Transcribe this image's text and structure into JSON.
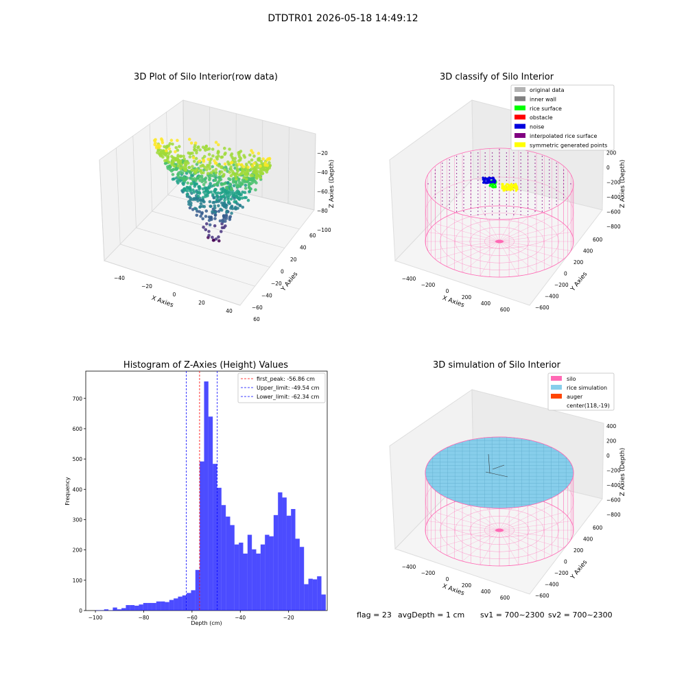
{
  "figure": {
    "suptitle": "DTDTR01 2026-05-18 14:49:12",
    "footer": {
      "flag": "flag = 23",
      "avg_depth": "avgDepth = 1 cm",
      "sv1": "sv1 = 700~2300",
      "sv2": "sv2 = 700~2300"
    }
  },
  "colors": {
    "original_data": "#b3b3b3",
    "inner_wall": "#808080",
    "rice_surface": "#00ff00",
    "obstacle": "#ff0000",
    "noise": "#0000dd",
    "interpolated": "#800080",
    "symmetric": "#ffff00",
    "silo": "#ff69b4",
    "rice_sim": "#87ceeb",
    "auger": "#ff4500",
    "hist": "#0000ff",
    "peak": "#ff0000",
    "limits": "#0000ff"
  },
  "chart_data": [
    {
      "type": "scatter",
      "projection": "3d",
      "title": "3D Plot of Silo Interior(row data)",
      "xlabel": "X Axies",
      "ylabel": "Y Axies",
      "zlabel": "Z Axies (Depth)",
      "xticks": [
        "−40",
        "−20",
        "0",
        "20",
        "40",
        "60"
      ],
      "yticks": [
        "−60",
        "−40",
        "−20",
        "0",
        "20",
        "40",
        "60"
      ],
      "zticks": [
        "−100",
        "−80",
        "−60",
        "−40",
        "−20"
      ],
      "xlim": [
        -55,
        70
      ],
      "ylim": [
        -65,
        70
      ],
      "zlim": [
        -105,
        -10
      ],
      "colormap": "viridis (by depth)"
    },
    {
      "type": "scatter",
      "projection": "3d",
      "title": "3D classify of Silo Interior",
      "xlabel": "X Axies",
      "ylabel": "Y Axies",
      "zlabel": "Z Axies (Depth)",
      "xticks": [
        "−400",
        "−200",
        "0",
        "200",
        "400",
        "600"
      ],
      "yticks": [
        "−600",
        "−400",
        "−200",
        "0",
        "200",
        "400",
        "600"
      ],
      "zticks": [
        "−800",
        "−600",
        "−400",
        "−200",
        "0",
        "200"
      ],
      "xlim": [
        -500,
        700
      ],
      "ylim": [
        -700,
        700
      ],
      "zlim": [
        -900,
        300
      ],
      "legend_position": "top-right",
      "legend": [
        {
          "label": "original data",
          "color": "#b3b3b3"
        },
        {
          "label": "inner wall",
          "color": "#808080"
        },
        {
          "label": "rice surface",
          "color": "#00ff00"
        },
        {
          "label": "obstacle",
          "color": "#ff0000"
        },
        {
          "label": "noise",
          "color": "#0000dd"
        },
        {
          "label": "interpolated rice surface",
          "color": "#800080"
        },
        {
          "label": "symmetric generated points",
          "color": "#ffff00"
        }
      ]
    },
    {
      "type": "bar",
      "title": "Histogram of Z-Axies (Height) Values",
      "xlabel": "Depth (cm)",
      "ylabel": "Frequency",
      "xlim": [
        -104,
        -4
      ],
      "ylim": [
        0,
        790
      ],
      "xticks": [
        -100,
        -80,
        -60,
        -40,
        -20
      ],
      "xtick_labels": [
        "−100",
        "−80",
        "−60",
        "−40",
        "−20"
      ],
      "yticks": [
        0,
        100,
        200,
        300,
        400,
        500,
        600,
        700
      ],
      "bin_width": 1.8,
      "bins_start": -100,
      "values": [
        1,
        1,
        4,
        1,
        10,
        4,
        8,
        18,
        18,
        16,
        20,
        25,
        25,
        25,
        30,
        30,
        28,
        35,
        40,
        46,
        50,
        58,
        67,
        134,
        492,
        756,
        640,
        484,
        405,
        348,
        310,
        282,
        218,
        224,
        188,
        250,
        202,
        188,
        218,
        250,
        245,
        315,
        390,
        373,
        313,
        335,
        237,
        210,
        87,
        105,
        103,
        113,
        53
      ],
      "grid": false,
      "legend_position": "top-right",
      "lines": [
        {
          "label": "first_peak: -56.86 cm",
          "x": -56.86,
          "style": "red-dashed"
        },
        {
          "label": "Upper_limit: -49.54 cm",
          "x": -49.54,
          "style": "blue-dashed"
        },
        {
          "label": "Lower_limit: -62.34 cm",
          "x": -62.34,
          "style": "blue-dashed"
        }
      ]
    },
    {
      "type": "area",
      "projection": "3d",
      "title": "3D simulation of Silo Interior",
      "xlabel": "X Axies",
      "ylabel": "Y Axies",
      "zlabel": "Z Axies (Depth)",
      "xticks": [
        "−400",
        "−200",
        "0",
        "200",
        "400",
        "600"
      ],
      "yticks": [
        "−600",
        "−400",
        "−200",
        "0",
        "200",
        "400",
        "600"
      ],
      "zticks": [
        "−800",
        "−600",
        "−400",
        "−200",
        "0",
        "200",
        "400"
      ],
      "xlim": [
        -500,
        700
      ],
      "ylim": [
        -700,
        700
      ],
      "zlim": [
        -900,
        450
      ],
      "legend_position": "top-right",
      "legend": [
        {
          "label": "silo",
          "color": "#ff69b4"
        },
        {
          "label": "rice simulation",
          "color": "#87ceeb"
        },
        {
          "label": "auger",
          "color": "#ff4500"
        },
        {
          "label": "center(118,-19)",
          "color": ""
        }
      ]
    }
  ]
}
